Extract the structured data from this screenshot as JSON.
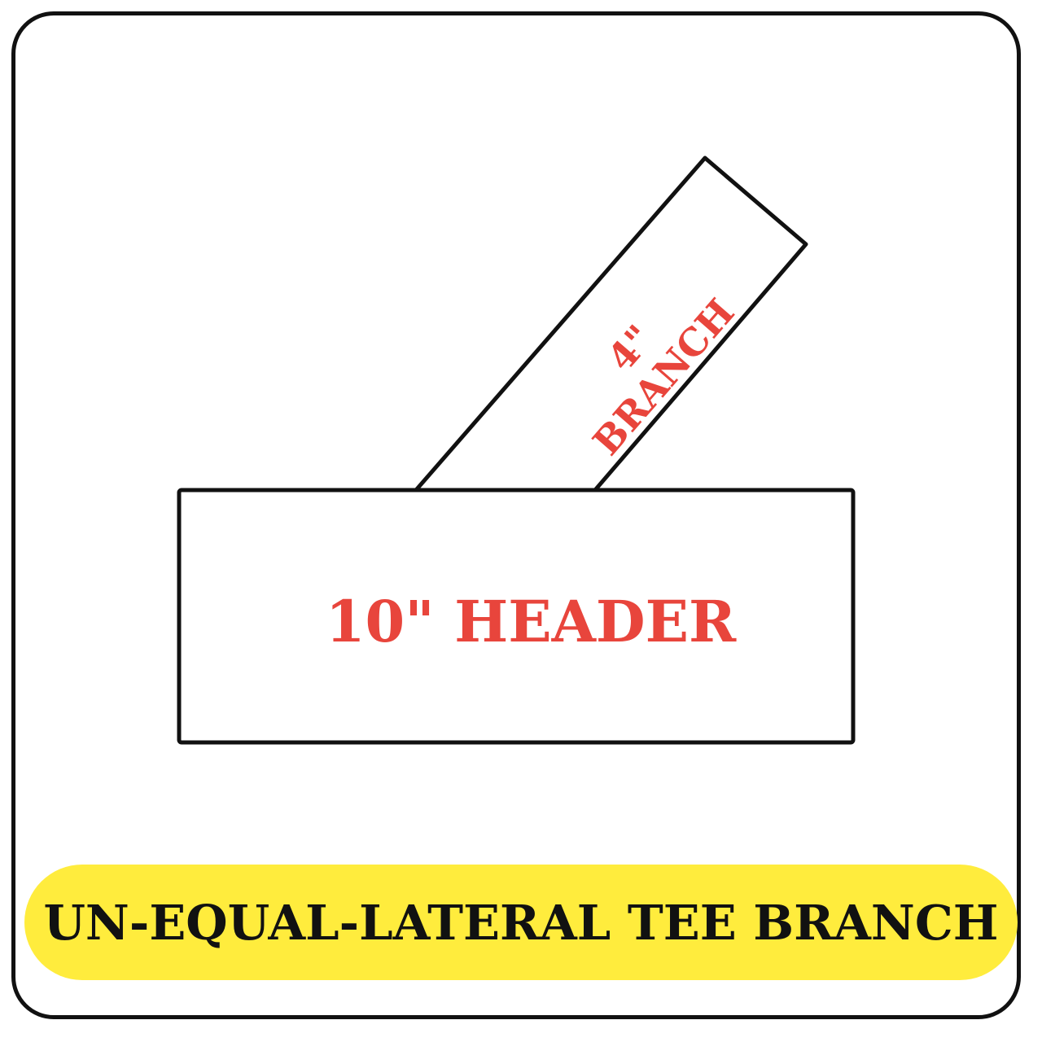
{
  "diagram": {
    "branch_label_size": "4\"",
    "branch_label_name": "BRANCH",
    "header_label": "10\" HEADER"
  },
  "title": "UN-EQUAL-LATERAL TEE BRANCH",
  "colors": {
    "outline": "#111111",
    "label_red": "#e8453c",
    "title_bg": "#ffec3d",
    "title_text": "#111111",
    "background": "#ffffff"
  }
}
